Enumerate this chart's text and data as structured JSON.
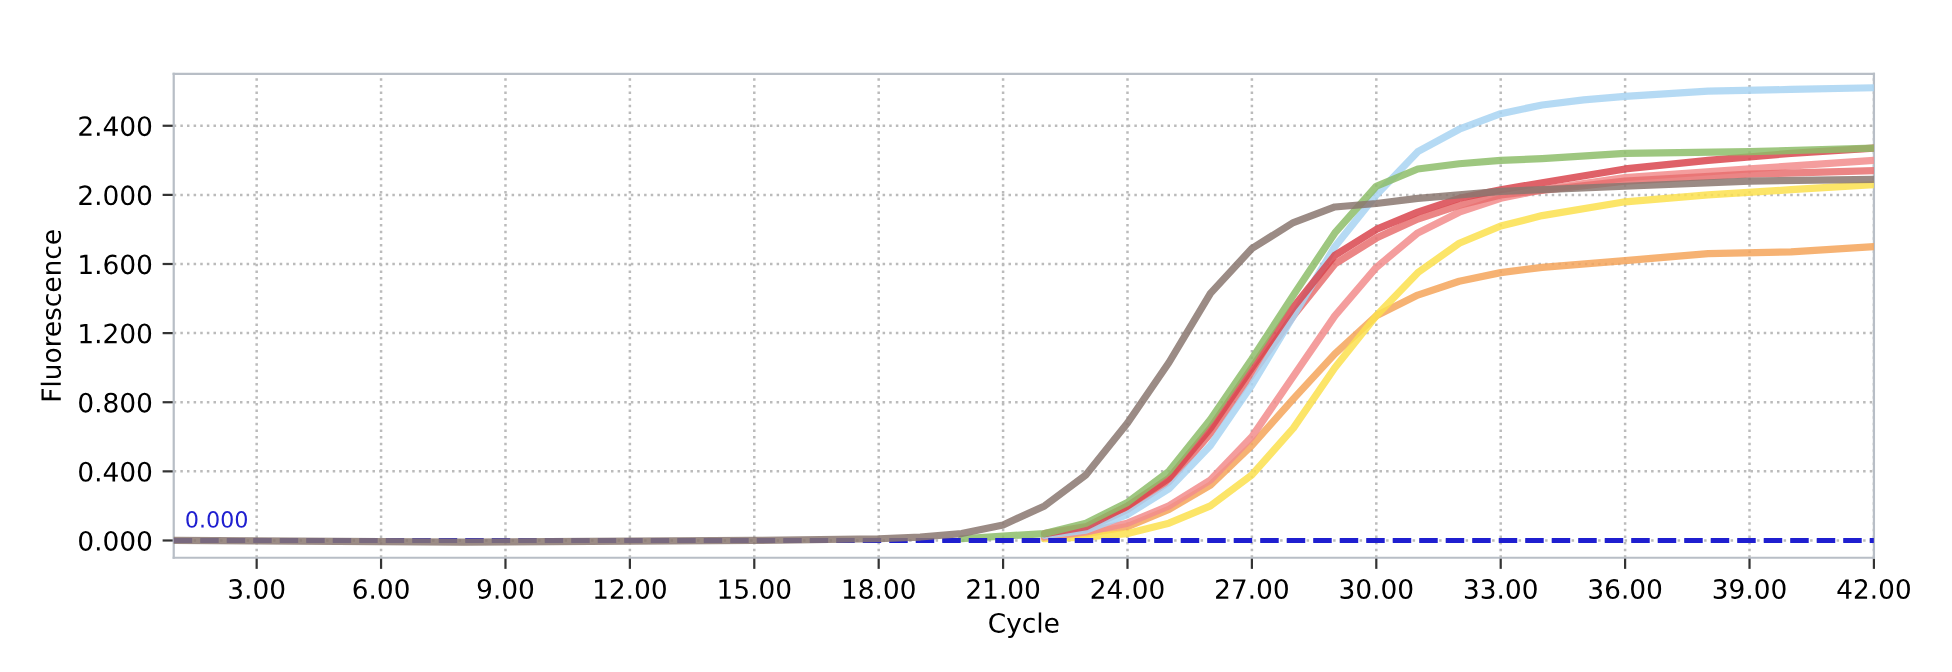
{
  "chart_data": {
    "type": "line",
    "xlabel": "Cycle",
    "ylabel": "Fluorescence",
    "xlim": [
      1,
      42
    ],
    "ylim": [
      -0.1,
      2.7
    ],
    "xticks": [
      {
        "value": 3,
        "label": "3.00"
      },
      {
        "value": 6,
        "label": "6.00"
      },
      {
        "value": 9,
        "label": "9.00"
      },
      {
        "value": 12,
        "label": "12.00"
      },
      {
        "value": 15,
        "label": "15.00"
      },
      {
        "value": 18,
        "label": "18.00"
      },
      {
        "value": 21,
        "label": "21.00"
      },
      {
        "value": 24,
        "label": "24.00"
      },
      {
        "value": 27,
        "label": "27.00"
      },
      {
        "value": 30,
        "label": "30.00"
      },
      {
        "value": 33,
        "label": "33.00"
      },
      {
        "value": 36,
        "label": "36.00"
      },
      {
        "value": 39,
        "label": "39.00"
      },
      {
        "value": 42,
        "label": "42.00"
      }
    ],
    "yticks": [
      {
        "value": 0,
        "label": "0.000"
      },
      {
        "value": 0.4,
        "label": "0.400"
      },
      {
        "value": 0.8,
        "label": "0.800"
      },
      {
        "value": 1.2,
        "label": "1.200"
      },
      {
        "value": 1.6,
        "label": "1.600"
      },
      {
        "value": 2.0,
        "label": "2.000"
      },
      {
        "value": 2.4,
        "label": "2.400"
      }
    ],
    "grid": true,
    "line_style": "solid",
    "marker": "none",
    "ref_lines": [
      {
        "axis": "y",
        "value": 0,
        "label": "0.000",
        "color": "#1f1fd0",
        "line_style": "dashed"
      }
    ],
    "series": [
      {
        "color": "#f5a55a",
        "x": [
          22,
          23,
          24,
          25,
          26,
          27,
          28,
          29,
          30,
          31,
          32,
          33,
          34,
          36,
          38,
          40,
          42
        ],
        "values": [
          0.02,
          0.04,
          0.08,
          0.18,
          0.32,
          0.55,
          0.82,
          1.08,
          1.3,
          1.42,
          1.5,
          1.55,
          1.58,
          1.62,
          1.66,
          1.67,
          1.7
        ]
      },
      {
        "color": "#fbe04e",
        "x": [
          22,
          23,
          24,
          25,
          26,
          27,
          28,
          29,
          30,
          31,
          32,
          33,
          34,
          36,
          38,
          40,
          42
        ],
        "values": [
          0.01,
          0.02,
          0.04,
          0.1,
          0.2,
          0.38,
          0.65,
          1.0,
          1.3,
          1.55,
          1.72,
          1.82,
          1.88,
          1.96,
          2.0,
          2.03,
          2.06
        ]
      },
      {
        "color": "#f28c8c",
        "x": [
          22,
          23,
          24,
          25,
          26,
          27,
          28,
          29,
          30,
          31,
          32,
          33,
          34,
          36,
          39,
          42
        ],
        "values": [
          0.02,
          0.05,
          0.1,
          0.2,
          0.35,
          0.6,
          0.95,
          1.3,
          1.58,
          1.78,
          1.9,
          1.98,
          2.03,
          2.1,
          2.15,
          2.2
        ]
      },
      {
        "color": "#e87070",
        "x": [
          22,
          23,
          24,
          25,
          26,
          27,
          28,
          29,
          30,
          31,
          32,
          33,
          36,
          39,
          42
        ],
        "values": [
          0.03,
          0.07,
          0.18,
          0.34,
          0.62,
          0.96,
          1.3,
          1.6,
          1.75,
          1.86,
          1.94,
          2.0,
          2.08,
          2.12,
          2.14
        ]
      },
      {
        "color": "#a8d4f2",
        "x": [
          22,
          23,
          24,
          25,
          26,
          27,
          28,
          29,
          30,
          31,
          32,
          33,
          34,
          35,
          36,
          38,
          40,
          42
        ],
        "values": [
          0.03,
          0.06,
          0.15,
          0.3,
          0.55,
          0.9,
          1.3,
          1.7,
          2.0,
          2.25,
          2.38,
          2.47,
          2.52,
          2.55,
          2.57,
          2.6,
          2.61,
          2.62
        ]
      },
      {
        "color": "#d9454d",
        "x": [
          22,
          23,
          24,
          25,
          26,
          27,
          28,
          29,
          30,
          31,
          32,
          33,
          34,
          36,
          38,
          40,
          42
        ],
        "values": [
          0.04,
          0.08,
          0.2,
          0.36,
          0.65,
          1.0,
          1.35,
          1.65,
          1.8,
          1.9,
          1.98,
          2.03,
          2.07,
          2.15,
          2.2,
          2.24,
          2.27
        ]
      },
      {
        "color": "#8dbd6a",
        "x": [
          20,
          22,
          23,
          24,
          25,
          26,
          27,
          28,
          29,
          30,
          31,
          32,
          33,
          34,
          36,
          39,
          42
        ],
        "values": [
          0.01,
          0.04,
          0.1,
          0.22,
          0.4,
          0.7,
          1.05,
          1.42,
          1.78,
          2.05,
          2.15,
          2.18,
          2.2,
          2.21,
          2.24,
          2.25,
          2.27
        ]
      },
      {
        "color": "#8a7770",
        "x": [
          1,
          8,
          15,
          18,
          19,
          20,
          21,
          22,
          23,
          24,
          25,
          26,
          27,
          28,
          29,
          30,
          31,
          33,
          36,
          39,
          42
        ],
        "values": [
          0,
          -0.01,
          0,
          0.01,
          0.02,
          0.04,
          0.09,
          0.2,
          0.38,
          0.68,
          1.03,
          1.43,
          1.69,
          1.84,
          1.93,
          1.95,
          1.98,
          2.02,
          2.05,
          2.08,
          2.09
        ]
      }
    ]
  }
}
